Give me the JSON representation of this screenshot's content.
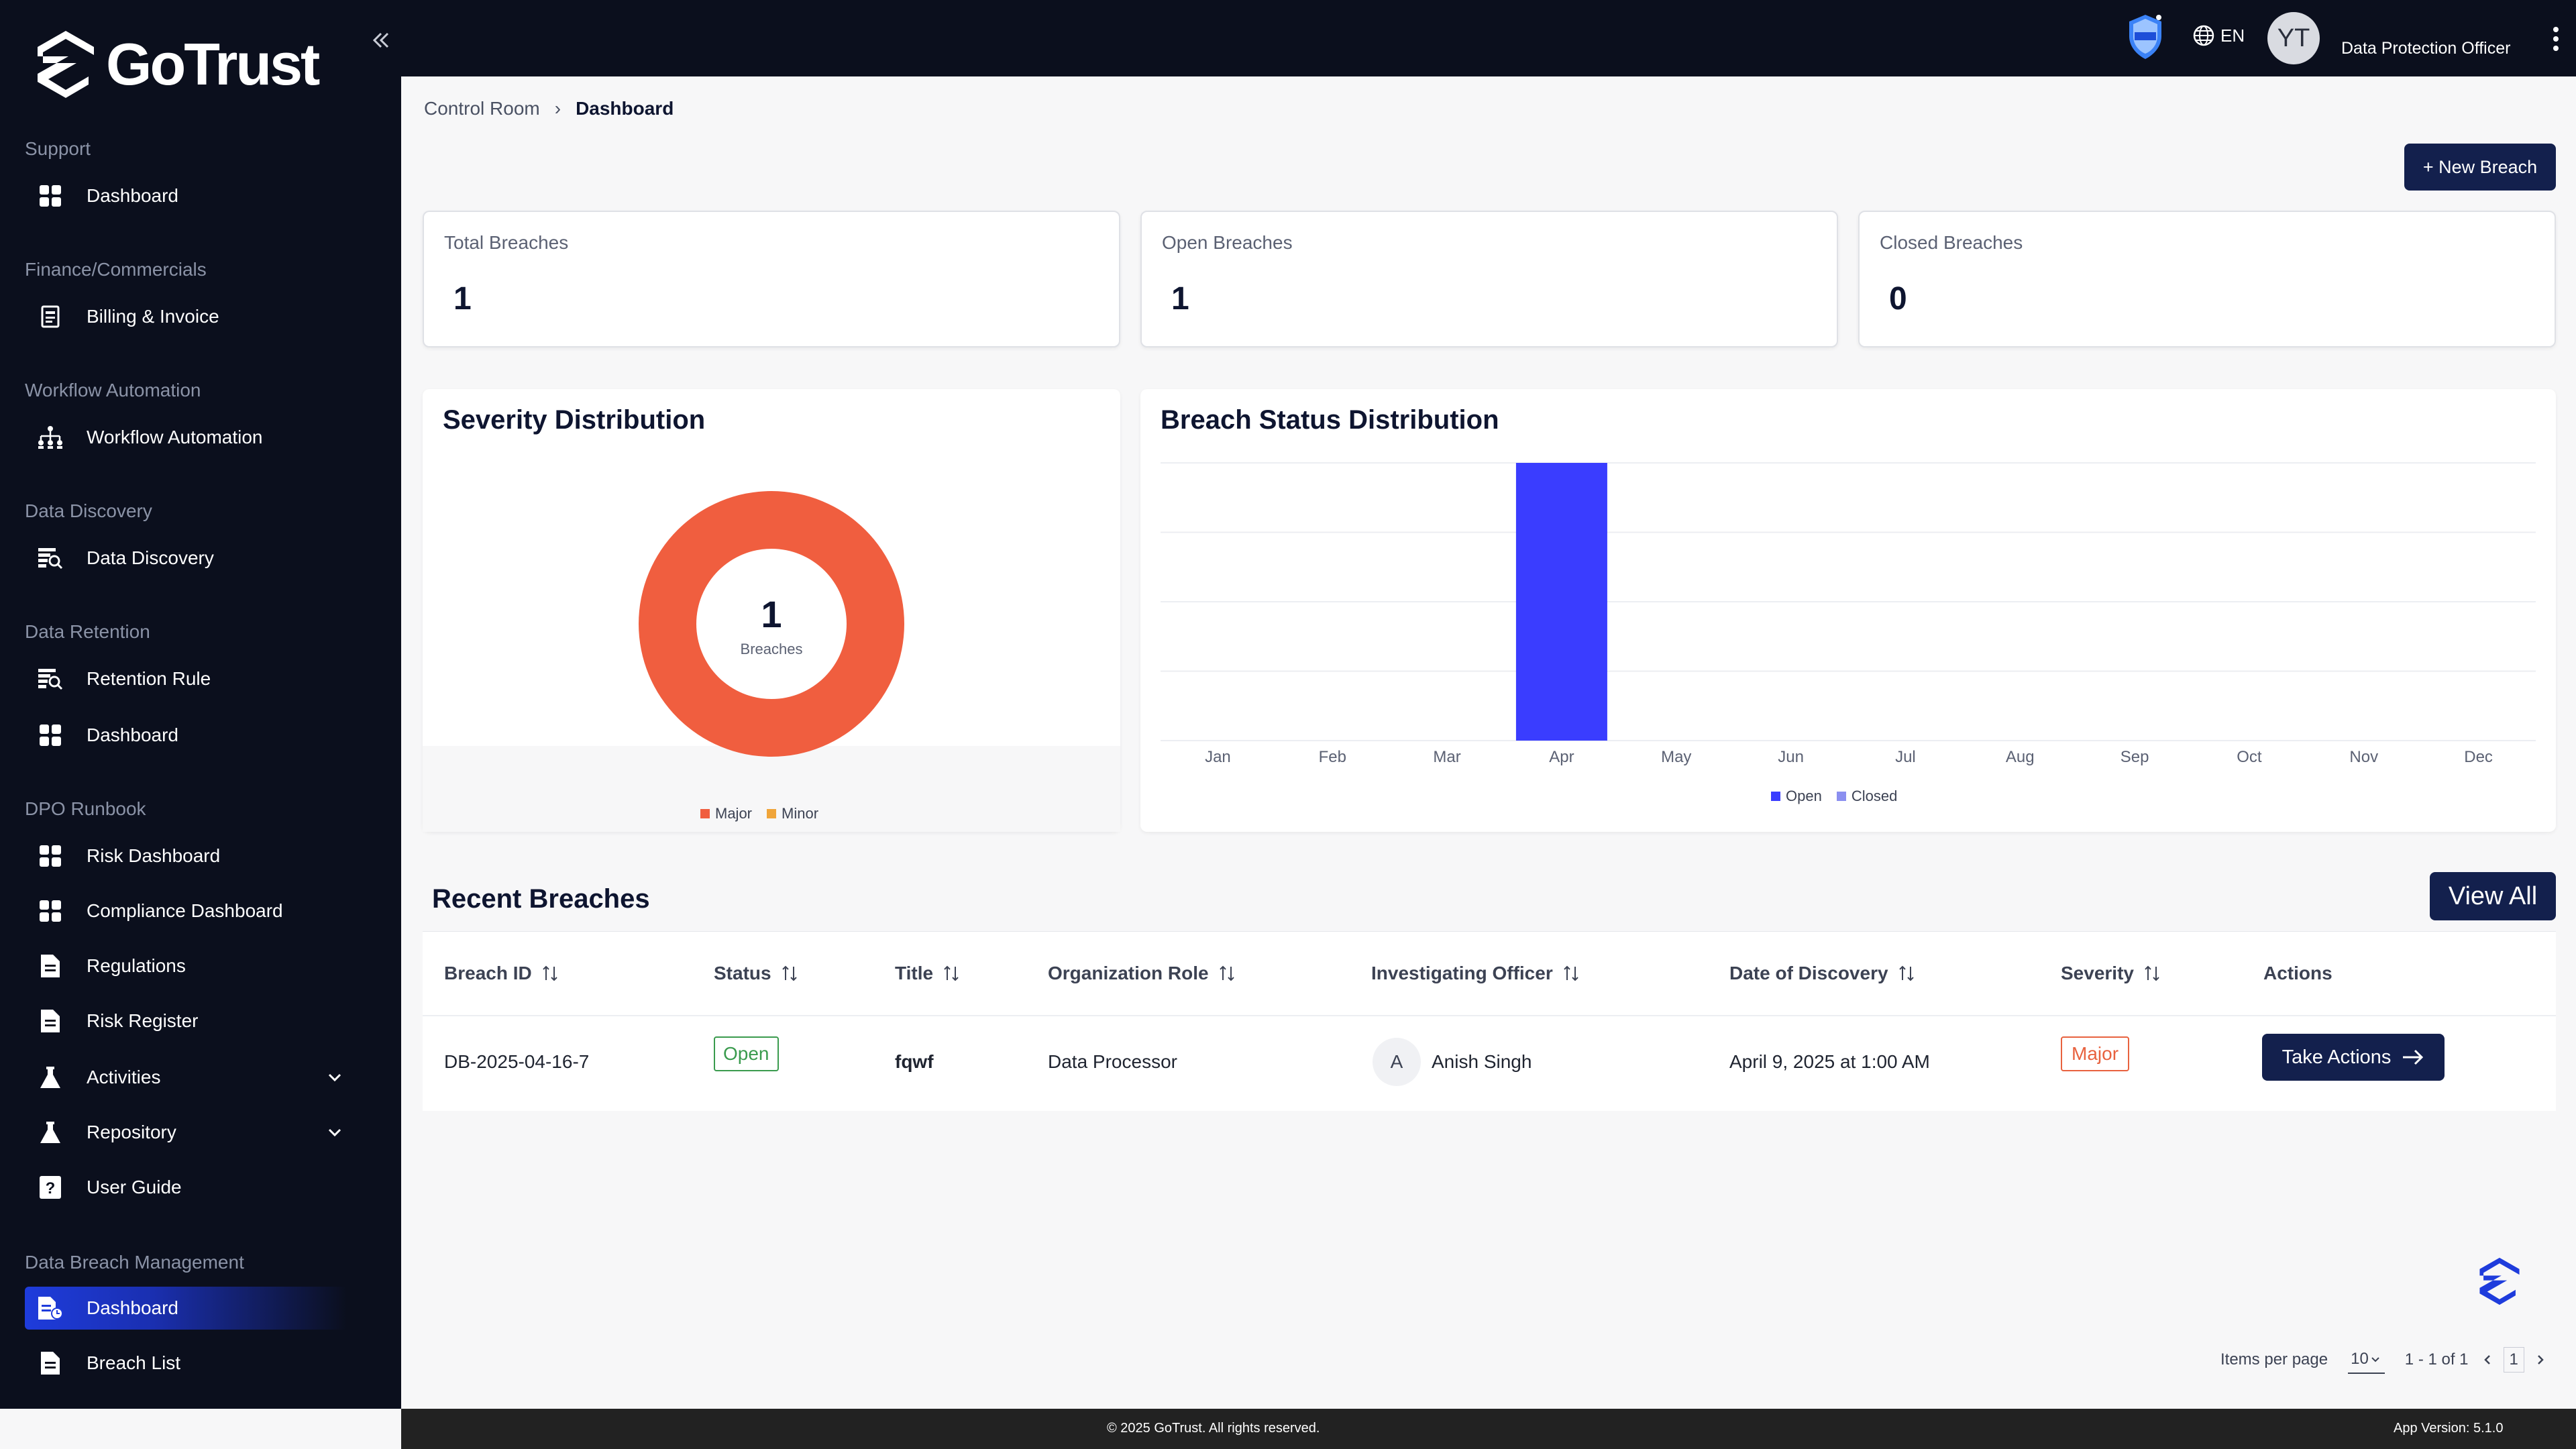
{
  "brand": {
    "name": "GoTrust"
  },
  "sidebar": {
    "sections": [
      {
        "title": "Support",
        "items": [
          {
            "label": "Dashboard",
            "icon": "grid-icon"
          }
        ]
      },
      {
        "title": "Finance/Commercials",
        "items": [
          {
            "label": "Billing & Invoice",
            "icon": "invoice-icon"
          }
        ]
      },
      {
        "title": "Workflow Automation",
        "items": [
          {
            "label": "Workflow Automation",
            "icon": "hierarchy-icon"
          }
        ]
      },
      {
        "title": "Data Discovery",
        "items": [
          {
            "label": "Data Discovery",
            "icon": "data-search-icon"
          }
        ]
      },
      {
        "title": "Data Retention",
        "items": [
          {
            "label": "Retention Rule",
            "icon": "data-search-icon"
          },
          {
            "label": "Dashboard",
            "icon": "grid-icon"
          }
        ]
      },
      {
        "title": "DPO Runbook",
        "items": [
          {
            "label": "Risk Dashboard",
            "icon": "grid-icon"
          },
          {
            "label": "Compliance Dashboard",
            "icon": "grid-icon"
          },
          {
            "label": "Regulations",
            "icon": "document-icon"
          },
          {
            "label": "Risk Register",
            "icon": "document-icon"
          },
          {
            "label": "Activities",
            "icon": "flask-icon"
          },
          {
            "label": "Repository",
            "icon": "flask-icon"
          },
          {
            "label": "User Guide",
            "icon": "help-book-icon"
          }
        ]
      },
      {
        "title": "Data Breach Management",
        "items": [
          {
            "label": "Dashboard",
            "icon": "breach-dashboard-icon",
            "active": true
          },
          {
            "label": "Breach List",
            "icon": "document-icon"
          }
        ]
      }
    ]
  },
  "topbar": {
    "language": "EN",
    "avatar_initials": "YT",
    "role": "Data Protection Officer"
  },
  "breadcrumb": {
    "parent": "Control Room",
    "current": "Dashboard"
  },
  "actions": {
    "new_breach": "+ New Breach",
    "view_all": "View All"
  },
  "stats": [
    {
      "label": "Total Breaches",
      "value": "1"
    },
    {
      "label": "Open Breaches",
      "value": "1"
    },
    {
      "label": "Closed Breaches",
      "value": "0"
    }
  ],
  "severity": {
    "title": "Severity Distribution",
    "center_value": "1",
    "center_label": "Breaches",
    "legend": [
      {
        "label": "Major",
        "color": "#f05e3f"
      },
      {
        "label": "Minor",
        "color": "#f0a53a"
      }
    ]
  },
  "status_chart": {
    "title": "Breach Status Distribution",
    "legend": [
      {
        "label": "Open",
        "color": "#3a3dff"
      },
      {
        "label": "Closed",
        "color": "#8b8ff0"
      }
    ]
  },
  "chart_data": [
    {
      "type": "pie",
      "labels": [
        "Major",
        "Minor"
      ],
      "values": [
        1,
        0
      ],
      "title": "Severity Distribution"
    },
    {
      "type": "bar",
      "title": "Breach Status Distribution",
      "categories": [
        "Jan",
        "Feb",
        "Mar",
        "Apr",
        "May",
        "Jun",
        "Jul",
        "Aug",
        "Sep",
        "Oct",
        "Nov",
        "Dec"
      ],
      "series": [
        {
          "name": "Open",
          "values": [
            0,
            0,
            0,
            1,
            0,
            0,
            0,
            0,
            0,
            0,
            0,
            0
          ]
        },
        {
          "name": "Closed",
          "values": [
            0,
            0,
            0,
            0,
            0,
            0,
            0,
            0,
            0,
            0,
            0,
            0
          ]
        }
      ],
      "ylim": [
        0,
        1
      ],
      "grid": true,
      "legend": "bottom"
    }
  ],
  "recent": {
    "title": "Recent Breaches",
    "columns": [
      "Breach ID",
      "Status",
      "Title",
      "Organization Role",
      "Investigating Officer",
      "Date of Discovery",
      "Severity",
      "Actions"
    ],
    "rows": [
      {
        "id": "DB-2025-04-16-7",
        "status": "Open",
        "title": "fqwf",
        "role": "Data Processor",
        "officer_initial": "A",
        "officer": "Anish Singh",
        "date": "April 9, 2025 at 1:00 AM",
        "severity": "Major",
        "action": "Take Actions"
      }
    ]
  },
  "pagination": {
    "items_per_page_label": "Items per page",
    "items_per_page": "10",
    "range": "1 - 1 of 1",
    "page": "1"
  },
  "footer": {
    "copyright": "© 2025 GoTrust. All rights reserved.",
    "version": "App Version: 5.1.0"
  }
}
